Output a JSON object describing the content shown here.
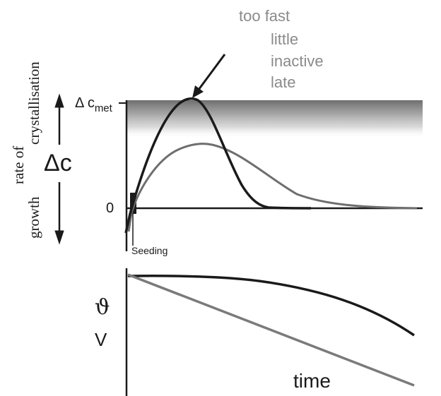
{
  "annotation": {
    "lines": [
      "too fast",
      "little",
      "inactive",
      "late"
    ]
  },
  "y_axis": {
    "delta_c": "Δc",
    "delta_c_met_base": "Δ c",
    "delta_c_met_sub": "met",
    "zero_label": "0",
    "upper_label": "crystallisation",
    "middle_label": "rate of",
    "lower_label": "growth"
  },
  "seeding_label": "Seeding",
  "lower_plot": {
    "theta_label": "ϑ",
    "v_label": "V",
    "x_label": "time"
  },
  "colors": {
    "dark_curve": "#1a1a1a",
    "grey_curve": "#6e6e6e",
    "annotation_text": "#8a8a8a",
    "metastable_band": "#7d7d7d"
  }
}
